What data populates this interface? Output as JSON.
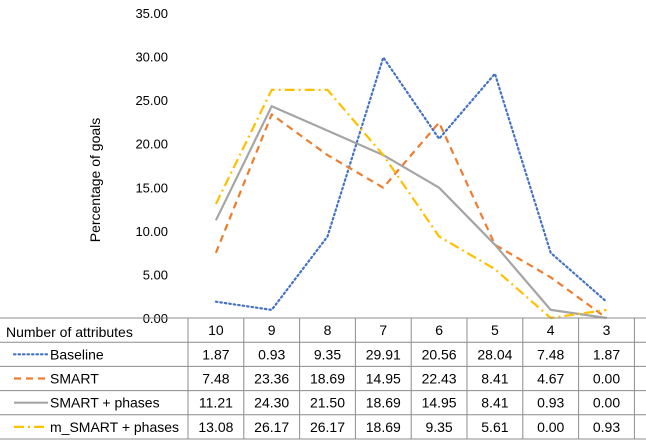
{
  "chart_data": {
    "type": "line",
    "ylabel": "Percentage of goals",
    "xlabel": "Number of attributes",
    "categories": [
      "10",
      "9",
      "8",
      "7",
      "6",
      "5",
      "4",
      "3"
    ],
    "ylim": [
      0,
      35
    ],
    "yticks": [
      "0.00",
      "5.00",
      "10.00",
      "15.00",
      "20.00",
      "25.00",
      "30.00",
      "35.00"
    ],
    "grid": false,
    "legend": "data table below chart",
    "series": [
      {
        "name": "Baseline",
        "values": [
          1.87,
          0.93,
          9.35,
          29.91,
          20.56,
          28.04,
          7.48,
          1.87
        ],
        "labels": [
          "1.87",
          "0.93",
          "9.35",
          "29.91",
          "20.56",
          "28.04",
          "7.48",
          "1.87"
        ],
        "color": "#4472C4",
        "dash": "dotted"
      },
      {
        "name": "SMART",
        "values": [
          7.48,
          23.36,
          18.69,
          14.95,
          22.43,
          8.41,
          4.67,
          0.0
        ],
        "labels": [
          "7.48",
          "23.36",
          "18.69",
          "14.95",
          "22.43",
          "8.41",
          "4.67",
          "0.00"
        ],
        "color": "#ED7D31",
        "dash": "dashed"
      },
      {
        "name": "SMART + phases",
        "values": [
          11.21,
          24.3,
          21.5,
          18.69,
          14.95,
          8.41,
          0.93,
          0.0
        ],
        "labels": [
          "11.21",
          "24.30",
          "21.50",
          "18.69",
          "14.95",
          "8.41",
          "0.93",
          "0.00"
        ],
        "color": "#A5A5A5",
        "dash": "solid"
      },
      {
        "name": "m_SMART + phases",
        "values": [
          13.08,
          26.17,
          26.17,
          18.69,
          9.35,
          5.61,
          0.0,
          0.93
        ],
        "labels": [
          "13.08",
          "26.17",
          "26.17",
          "18.69",
          "9.35",
          "5.61",
          "0.00",
          "0.93"
        ],
        "color": "#FFC000",
        "dash": "dashdot"
      }
    ]
  }
}
